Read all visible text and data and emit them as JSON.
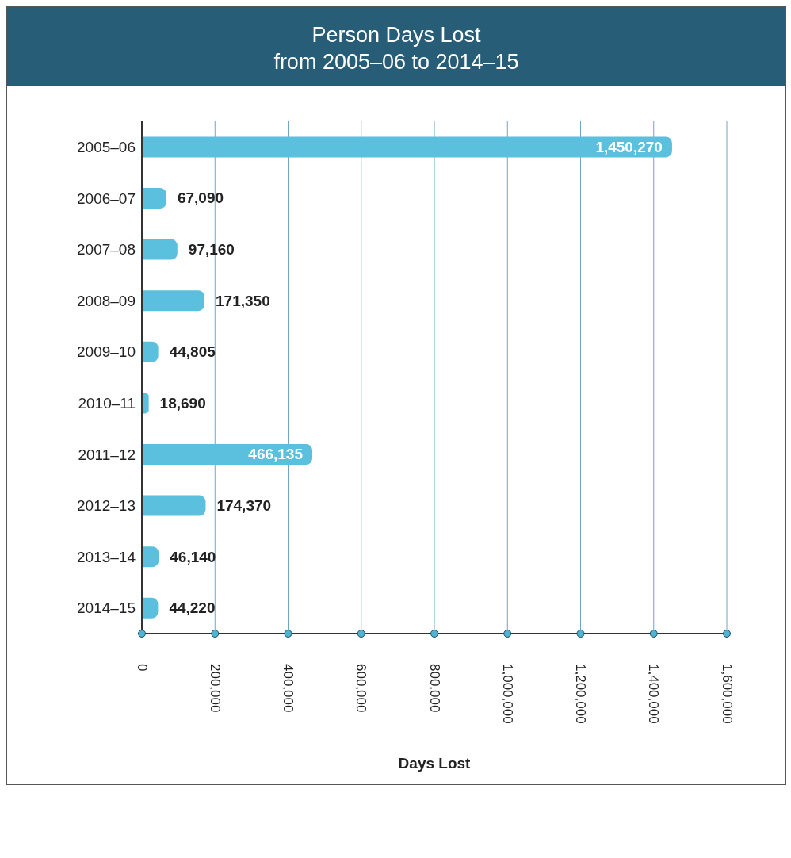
{
  "chart_data": {
    "type": "bar",
    "orientation": "horizontal",
    "title": "Person Days Lost",
    "subtitle": "from 2005–06 to 2014–15",
    "xlabel": "Days Lost",
    "categories": [
      "2005–06",
      "2006–07",
      "2007–08",
      "2008–09",
      "2009–10",
      "2010–11",
      "2011–12",
      "2012–13",
      "2013–14",
      "2014–15"
    ],
    "values": [
      1450270,
      67090,
      97160,
      171350,
      44805,
      18690,
      466135,
      174370,
      46140,
      44220
    ],
    "value_labels": [
      "1,450,270",
      "67,090",
      "97,160",
      "171,350",
      "44,805",
      "18,690",
      "466,135",
      "174,370",
      "46,140",
      "44,220"
    ],
    "color": "#5bbfde",
    "xlim": [
      0,
      1600000
    ],
    "xticks": [
      0,
      {
        "value": 200000,
        "label": "200,000"
      },
      {
        "value": 400000,
        "label": "400,000"
      },
      {
        "value": 600000,
        "label": "600,000"
      },
      {
        "value": 800000,
        "label": "800,000"
      },
      {
        "value": 1000000,
        "label": "1,000,000"
      },
      {
        "value": 1200000,
        "label": "1,200,000"
      },
      {
        "value": 1400000,
        "label": "1,400,000"
      },
      {
        "value": 1600000,
        "label": "1,600,000"
      }
    ],
    "grid": "x"
  }
}
